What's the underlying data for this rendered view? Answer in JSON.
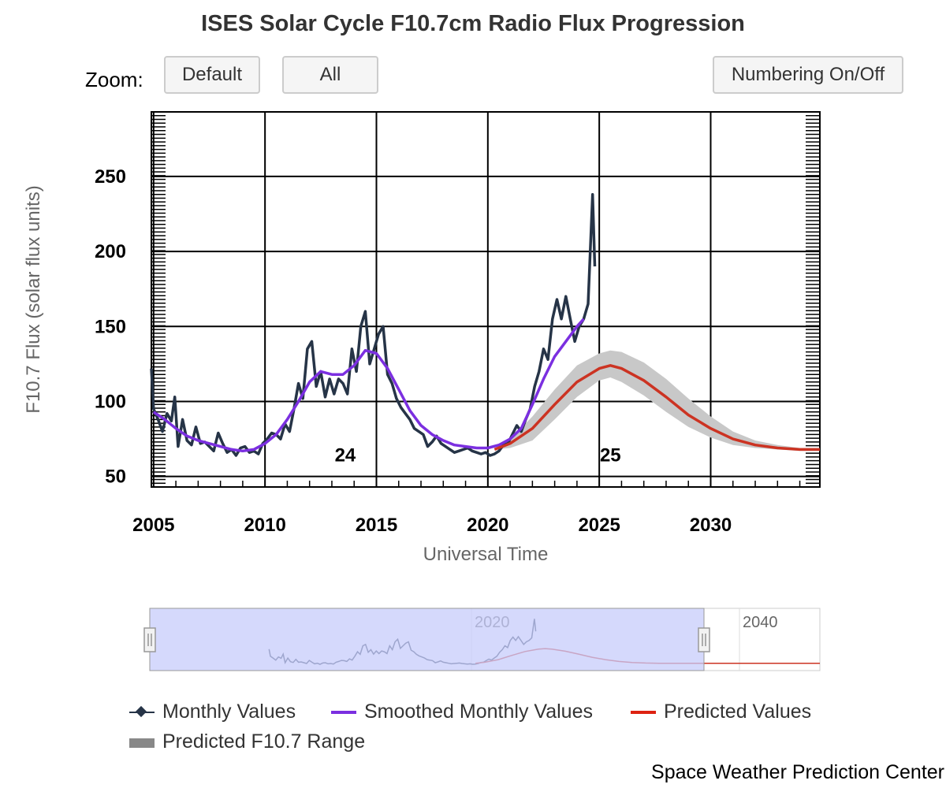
{
  "title": "ISES Solar Cycle F10.7cm Radio Flux Progression",
  "controls": {
    "zoom_label": "Zoom:",
    "default_label": "Default",
    "all_label": "All",
    "numbering_label": "Numbering On/Off"
  },
  "footer": "Space Weather Prediction Center",
  "colors": {
    "monthly": "#263447",
    "smoothed": "#7b2fe0",
    "predicted": "#cc3322",
    "range": "#c8c8c8",
    "navigator_mask": "#c7ccfb"
  },
  "chart_data": {
    "type": "line",
    "title": "ISES Solar Cycle F10.7cm Radio Flux Progression",
    "xlabel": "Universal Time",
    "ylabel": "F10.7 Flux (solar flux units)",
    "xlim": [
      2004.9,
      2034.9
    ],
    "ylim": [
      43,
      293
    ],
    "xticks": [
      2005,
      2010,
      2015,
      2020,
      2025,
      2030
    ],
    "yticks": [
      50,
      100,
      150,
      200,
      250
    ],
    "grid": true,
    "cycle_labels": [
      {
        "text": "24",
        "x": 2013.6,
        "y": 60
      },
      {
        "text": "25",
        "x": 2025.5,
        "y": 60
      }
    ],
    "series": [
      {
        "name": "Monthly Values",
        "type": "line",
        "points": [
          [
            2004.9,
            122
          ],
          [
            2005.0,
            95
          ],
          [
            2005.2,
            88
          ],
          [
            2005.4,
            80
          ],
          [
            2005.6,
            92
          ],
          [
            2005.8,
            87
          ],
          [
            2005.95,
            103
          ],
          [
            2006.1,
            70
          ],
          [
            2006.3,
            88
          ],
          [
            2006.5,
            74
          ],
          [
            2006.7,
            71
          ],
          [
            2006.9,
            83
          ],
          [
            2007.1,
            72
          ],
          [
            2007.3,
            73
          ],
          [
            2007.5,
            70
          ],
          [
            2007.7,
            67
          ],
          [
            2007.9,
            79
          ],
          [
            2008.1,
            72
          ],
          [
            2008.3,
            66
          ],
          [
            2008.5,
            68
          ],
          [
            2008.7,
            64
          ],
          [
            2008.9,
            69
          ],
          [
            2009.1,
            70
          ],
          [
            2009.3,
            66
          ],
          [
            2009.5,
            67
          ],
          [
            2009.7,
            65
          ],
          [
            2009.9,
            72
          ],
          [
            2010.1,
            75
          ],
          [
            2010.3,
            79
          ],
          [
            2010.5,
            78
          ],
          [
            2010.7,
            75
          ],
          [
            2010.9,
            85
          ],
          [
            2011.1,
            80
          ],
          [
            2011.3,
            95
          ],
          [
            2011.5,
            112
          ],
          [
            2011.7,
            102
          ],
          [
            2011.9,
            135
          ],
          [
            2012.1,
            140
          ],
          [
            2012.3,
            110
          ],
          [
            2012.5,
            120
          ],
          [
            2012.7,
            103
          ],
          [
            2012.9,
            115
          ],
          [
            2013.1,
            105
          ],
          [
            2013.3,
            115
          ],
          [
            2013.5,
            112
          ],
          [
            2013.7,
            105
          ],
          [
            2013.9,
            135
          ],
          [
            2014.1,
            120
          ],
          [
            2014.3,
            150
          ],
          [
            2014.5,
            160
          ],
          [
            2014.7,
            125
          ],
          [
            2014.9,
            135
          ],
          [
            2015.1,
            145
          ],
          [
            2015.3,
            150
          ],
          [
            2015.5,
            118
          ],
          [
            2015.7,
            112
          ],
          [
            2015.9,
            102
          ],
          [
            2016.1,
            96
          ],
          [
            2016.3,
            92
          ],
          [
            2016.5,
            88
          ],
          [
            2016.7,
            82
          ],
          [
            2016.9,
            80
          ],
          [
            2017.1,
            78
          ],
          [
            2017.3,
            70
          ],
          [
            2017.5,
            73
          ],
          [
            2017.7,
            77
          ],
          [
            2017.9,
            72
          ],
          [
            2018.1,
            70
          ],
          [
            2018.3,
            68
          ],
          [
            2018.5,
            66
          ],
          [
            2018.7,
            67
          ],
          [
            2018.9,
            68
          ],
          [
            2019.1,
            69
          ],
          [
            2019.3,
            67
          ],
          [
            2019.5,
            66
          ],
          [
            2019.7,
            65
          ],
          [
            2019.9,
            66
          ],
          [
            2020.1,
            64
          ],
          [
            2020.3,
            65
          ],
          [
            2020.5,
            67
          ],
          [
            2020.7,
            71
          ],
          [
            2020.9,
            72
          ],
          [
            2021.1,
            78
          ],
          [
            2021.3,
            84
          ],
          [
            2021.5,
            80
          ],
          [
            2021.7,
            88
          ],
          [
            2021.9,
            95
          ],
          [
            2022.1,
            110
          ],
          [
            2022.3,
            120
          ],
          [
            2022.5,
            135
          ],
          [
            2022.7,
            128
          ],
          [
            2022.9,
            155
          ],
          [
            2023.1,
            168
          ],
          [
            2023.3,
            155
          ],
          [
            2023.5,
            170
          ],
          [
            2023.7,
            155
          ],
          [
            2023.9,
            140
          ],
          [
            2024.1,
            150
          ],
          [
            2024.3,
            155
          ],
          [
            2024.5,
            165
          ],
          [
            2024.7,
            238
          ],
          [
            2024.8,
            190
          ]
        ]
      },
      {
        "name": "Smoothed Monthly Values",
        "type": "line",
        "points": [
          [
            2005.0,
            93
          ],
          [
            2005.5,
            88
          ],
          [
            2006.0,
            82
          ],
          [
            2006.5,
            77
          ],
          [
            2007.0,
            74
          ],
          [
            2007.5,
            72
          ],
          [
            2008.0,
            70
          ],
          [
            2008.5,
            68
          ],
          [
            2009.0,
            67
          ],
          [
            2009.5,
            68
          ],
          [
            2010.0,
            72
          ],
          [
            2010.5,
            78
          ],
          [
            2011.0,
            88
          ],
          [
            2011.5,
            100
          ],
          [
            2012.0,
            113
          ],
          [
            2012.5,
            120
          ],
          [
            2013.0,
            118
          ],
          [
            2013.5,
            118
          ],
          [
            2014.0,
            124
          ],
          [
            2014.5,
            134
          ],
          [
            2015.0,
            132
          ],
          [
            2015.5,
            122
          ],
          [
            2016.0,
            108
          ],
          [
            2016.5,
            94
          ],
          [
            2017.0,
            84
          ],
          [
            2017.5,
            78
          ],
          [
            2018.0,
            74
          ],
          [
            2018.5,
            71
          ],
          [
            2019.0,
            70
          ],
          [
            2019.5,
            69
          ],
          [
            2020.0,
            69
          ],
          [
            2020.5,
            71
          ],
          [
            2021.0,
            75
          ],
          [
            2021.5,
            82
          ],
          [
            2022.0,
            98
          ],
          [
            2022.5,
            115
          ],
          [
            2023.0,
            130
          ],
          [
            2023.5,
            140
          ],
          [
            2024.0,
            150
          ],
          [
            2024.3,
            155
          ]
        ]
      },
      {
        "name": "Predicted Values",
        "type": "line",
        "points": [
          [
            2020.3,
            68
          ],
          [
            2021.0,
            72
          ],
          [
            2022.0,
            82
          ],
          [
            2023.0,
            98
          ],
          [
            2024.0,
            113
          ],
          [
            2025.0,
            122
          ],
          [
            2025.5,
            124
          ],
          [
            2026.0,
            122
          ],
          [
            2027.0,
            114
          ],
          [
            2028.0,
            103
          ],
          [
            2029.0,
            91
          ],
          [
            2030.0,
            82
          ],
          [
            2031.0,
            75
          ],
          [
            2032.0,
            71
          ],
          [
            2033.0,
            69
          ],
          [
            2034.0,
            68
          ],
          [
            2034.9,
            68
          ]
        ]
      },
      {
        "name": "Predicted F10.7 Range",
        "type": "area",
        "upper": [
          [
            2020.3,
            68
          ],
          [
            2021.0,
            75
          ],
          [
            2022.0,
            90
          ],
          [
            2023.0,
            108
          ],
          [
            2024.0,
            124
          ],
          [
            2025.0,
            132
          ],
          [
            2025.5,
            134
          ],
          [
            2026.0,
            133
          ],
          [
            2027.0,
            126
          ],
          [
            2028.0,
            115
          ],
          [
            2029.0,
            102
          ],
          [
            2030.0,
            90
          ],
          [
            2031.0,
            80
          ],
          [
            2032.0,
            74
          ],
          [
            2033.0,
            71
          ],
          [
            2034.0,
            69
          ],
          [
            2034.9,
            69
          ]
        ],
        "lower": [
          [
            2020.3,
            68
          ],
          [
            2021.0,
            69
          ],
          [
            2022.0,
            74
          ],
          [
            2023.0,
            88
          ],
          [
            2024.0,
            103
          ],
          [
            2025.0,
            114
          ],
          [
            2025.5,
            116
          ],
          [
            2026.0,
            113
          ],
          [
            2027.0,
            104
          ],
          [
            2028.0,
            93
          ],
          [
            2029.0,
            83
          ],
          [
            2030.0,
            76
          ],
          [
            2031.0,
            71
          ],
          [
            2032.0,
            69
          ],
          [
            2033.0,
            68
          ],
          [
            2034.0,
            67
          ],
          [
            2034.9,
            67
          ]
        ]
      }
    ],
    "navigator": {
      "xticks": [
        2020,
        2040
      ],
      "selection": [
        2004.9,
        2034.9
      ]
    },
    "legend": {
      "placement": "bottom",
      "items": [
        "Monthly Values",
        "Smoothed Monthly Values",
        "Predicted Values",
        "Predicted F10.7 Range"
      ]
    }
  }
}
